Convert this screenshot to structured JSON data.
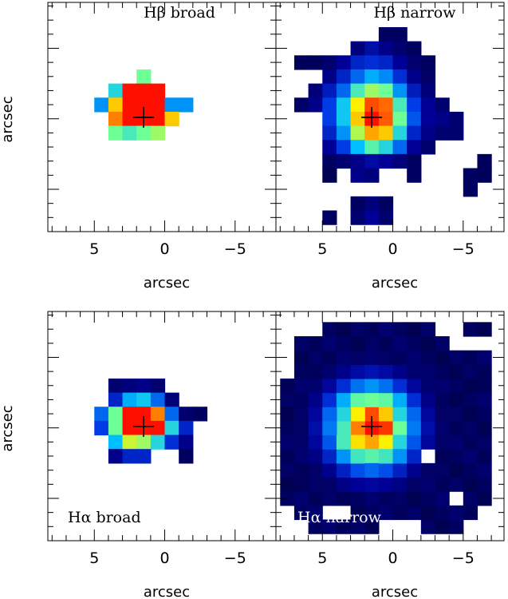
{
  "figure": {
    "x_axis_label": "arcsec",
    "y_axis_label": "arcsec",
    "x_ticks": [
      "5",
      "0",
      "−5"
    ],
    "title_color_dark": "#000000",
    "title_color_light": "#ffffff",
    "cross_color": "#000000"
  },
  "chart_data": [
    {
      "type": "heatmap",
      "title": "Hβ broad",
      "xlabel": "arcsec",
      "ylabel": "arcsec",
      "xlim": [
        8.3,
        -7.9
      ],
      "x_ticks": [
        5,
        0,
        -5
      ],
      "centroid": [
        1.5,
        0.1
      ],
      "pixel_size_arcsec": 1.0,
      "cells": [
        [
          1.5,
          3,
          0.55
        ],
        [
          3.5,
          2,
          0.45
        ],
        [
          2.5,
          2,
          1.0
        ],
        [
          1.5,
          2,
          1.0
        ],
        [
          0.5,
          2,
          1.0
        ],
        [
          4.5,
          1,
          0.35
        ],
        [
          3.5,
          1,
          0.75
        ],
        [
          2.5,
          1,
          1.0
        ],
        [
          1.5,
          1,
          1.0
        ],
        [
          0.5,
          1,
          1.0
        ],
        [
          -0.5,
          1,
          0.35
        ],
        [
          -1.5,
          1,
          0.35
        ],
        [
          3.5,
          0,
          0.85
        ],
        [
          2.5,
          0,
          1.0
        ],
        [
          1.5,
          0,
          1.0
        ],
        [
          0.5,
          0,
          1.0
        ],
        [
          -0.5,
          0,
          0.75
        ],
        [
          3.5,
          -1,
          0.55
        ],
        [
          2.5,
          -1,
          0.5
        ],
        [
          1.5,
          -1,
          0.55
        ],
        [
          0.5,
          -1,
          0.6
        ]
      ]
    },
    {
      "type": "heatmap",
      "title": "Hβ narrow",
      "xlabel": "arcsec",
      "ylabel": "arcsec",
      "xlim": [
        8.3,
        -7.9
      ],
      "x_ticks": [
        5,
        0,
        -5
      ],
      "centroid": [
        1.5,
        0.1
      ],
      "pixel_size_arcsec": 1.0,
      "cells": [
        [
          0.5,
          6,
          0.04
        ],
        [
          -0.5,
          6,
          0.04
        ],
        [
          2.5,
          5,
          0.08
        ],
        [
          1.5,
          5,
          0.15
        ],
        [
          0.5,
          5,
          0.1
        ],
        [
          -0.5,
          5,
          0.06
        ],
        [
          -1.5,
          5,
          0.04
        ],
        [
          6.5,
          4,
          0.03
        ],
        [
          5.5,
          4,
          0.03
        ],
        [
          4.5,
          4,
          0.06
        ],
        [
          3.5,
          4,
          0.12
        ],
        [
          2.5,
          4,
          0.2
        ],
        [
          1.5,
          4,
          0.22
        ],
        [
          0.5,
          4,
          0.2
        ],
        [
          -0.5,
          4,
          0.12
        ],
        [
          -1.5,
          4,
          0.06
        ],
        [
          -2.5,
          4,
          0.04
        ],
        [
          4.5,
          3,
          0.1
        ],
        [
          3.5,
          3,
          0.2
        ],
        [
          2.5,
          3,
          0.3
        ],
        [
          1.5,
          3,
          0.38
        ],
        [
          0.5,
          3,
          0.34
        ],
        [
          -0.5,
          3,
          0.22
        ],
        [
          -1.5,
          3,
          0.1
        ],
        [
          -2.5,
          3,
          0.05
        ],
        [
          5.5,
          2,
          0.08
        ],
        [
          4.5,
          2,
          0.18
        ],
        [
          3.5,
          2,
          0.3
        ],
        [
          2.5,
          2,
          0.5
        ],
        [
          1.5,
          2,
          0.6
        ],
        [
          0.5,
          2,
          0.55
        ],
        [
          -0.5,
          2,
          0.35
        ],
        [
          -1.5,
          2,
          0.18
        ],
        [
          -2.5,
          2,
          0.08
        ],
        [
          6.5,
          1,
          0.05
        ],
        [
          5.5,
          1,
          0.1
        ],
        [
          4.5,
          1,
          0.25
        ],
        [
          3.5,
          1,
          0.42
        ],
        [
          2.5,
          1,
          0.7
        ],
        [
          1.5,
          1,
          0.92
        ],
        [
          0.5,
          1,
          0.88
        ],
        [
          -0.5,
          1,
          0.5
        ],
        [
          -1.5,
          1,
          0.25
        ],
        [
          -2.5,
          1,
          0.12
        ],
        [
          -3.5,
          1,
          0.06
        ],
        [
          4.5,
          0,
          0.25
        ],
        [
          3.5,
          0,
          0.42
        ],
        [
          2.5,
          0,
          0.75
        ],
        [
          1.5,
          0,
          1.0
        ],
        [
          0.5,
          0,
          0.9
        ],
        [
          -0.5,
          0,
          0.55
        ],
        [
          -1.5,
          0,
          0.28
        ],
        [
          -2.5,
          0,
          0.12
        ],
        [
          -3.5,
          0,
          0.1
        ],
        [
          -4.5,
          0,
          0.06
        ],
        [
          4.5,
          -1,
          0.2
        ],
        [
          3.5,
          -1,
          0.35
        ],
        [
          2.5,
          -1,
          0.62
        ],
        [
          1.5,
          -1,
          0.8
        ],
        [
          0.5,
          -1,
          0.75
        ],
        [
          -0.5,
          -1,
          0.45
        ],
        [
          -1.5,
          -1,
          0.2
        ],
        [
          -2.5,
          -1,
          0.1
        ],
        [
          -3.5,
          -1,
          0.06
        ],
        [
          -4.5,
          -1,
          0.06
        ],
        [
          4.5,
          -2,
          0.12
        ],
        [
          3.5,
          -2,
          0.25
        ],
        [
          2.5,
          -2,
          0.4
        ],
        [
          1.5,
          -2,
          0.52
        ],
        [
          0.5,
          -2,
          0.45
        ],
        [
          -0.5,
          -2,
          0.3
        ],
        [
          -1.5,
          -2,
          0.12
        ],
        [
          -2.5,
          -2,
          0.06
        ],
        [
          4.5,
          -3,
          0.04
        ],
        [
          3.5,
          -3,
          0.06
        ],
        [
          2.5,
          -3,
          0.1
        ],
        [
          1.5,
          -3,
          0.14
        ],
        [
          0.5,
          -3,
          0.12
        ],
        [
          -0.5,
          -3,
          0.08
        ],
        [
          -1.5,
          -3,
          0.04
        ],
        [
          -6.5,
          -3,
          0.03
        ],
        [
          4.5,
          -4,
          0.02
        ],
        [
          2.5,
          -4,
          0.1
        ],
        [
          1.5,
          -4,
          0.08
        ],
        [
          -1.5,
          -4,
          0.04
        ],
        [
          -5.5,
          -4,
          0.04
        ],
        [
          -6.5,
          -4,
          0.03
        ],
        [
          -5.5,
          -5,
          0.04
        ],
        [
          2.5,
          -6,
          0.04
        ],
        [
          1.5,
          -6,
          0.08
        ],
        [
          0.5,
          -6,
          0.04
        ],
        [
          4.5,
          -7,
          0.04
        ],
        [
          2.5,
          -7,
          0.06
        ],
        [
          1.5,
          -7,
          0.12
        ],
        [
          0.5,
          -7,
          0.06
        ]
      ]
    },
    {
      "type": "heatmap",
      "title": "Hα broad",
      "xlabel": "arcsec",
      "ylabel": "arcsec",
      "xlim": [
        8.3,
        -7.9
      ],
      "x_ticks": [
        5,
        0,
        -5
      ],
      "centroid": [
        1.5,
        0.1
      ],
      "pixel_size_arcsec": 1.0,
      "cells": [
        [
          3.5,
          3,
          0.06
        ],
        [
          2.5,
          3,
          0.08
        ],
        [
          1.5,
          3,
          0.1
        ],
        [
          0.5,
          3,
          0.06
        ],
        [
          3.5,
          2,
          0.2
        ],
        [
          2.5,
          2,
          0.38
        ],
        [
          1.5,
          2,
          0.42
        ],
        [
          0.5,
          2,
          0.3
        ],
        [
          -0.5,
          2,
          0.08
        ],
        [
          4.5,
          1,
          0.3
        ],
        [
          3.5,
          1,
          0.55
        ],
        [
          2.5,
          1,
          1.0
        ],
        [
          1.5,
          1,
          1.0
        ],
        [
          0.5,
          1,
          0.85
        ],
        [
          -0.5,
          1,
          0.3
        ],
        [
          -1.5,
          1,
          0.06
        ],
        [
          -2.5,
          1,
          0.04
        ],
        [
          4.5,
          0,
          0.25
        ],
        [
          3.5,
          0,
          0.55
        ],
        [
          2.5,
          0,
          1.0
        ],
        [
          1.5,
          0,
          1.0
        ],
        [
          0.5,
          0,
          1.0
        ],
        [
          -0.5,
          0,
          0.45
        ],
        [
          -1.5,
          0,
          0.2
        ],
        [
          3.5,
          -1,
          0.4
        ],
        [
          2.5,
          -1,
          0.65
        ],
        [
          1.5,
          -1,
          0.6
        ],
        [
          0.5,
          -1,
          0.45
        ],
        [
          -0.5,
          -1,
          0.22
        ],
        [
          -1.5,
          -1,
          0.1
        ],
        [
          3.5,
          -2,
          0.1
        ],
        [
          2.5,
          -2,
          0.2
        ],
        [
          1.5,
          -2,
          0.2
        ],
        [
          -1.5,
          -2,
          0.04
        ]
      ]
    },
    {
      "type": "heatmap",
      "title": "Hα narrow",
      "xlabel": "arcsec",
      "ylabel": "arcsec",
      "xlim": [
        8.3,
        -7.9
      ],
      "x_ticks": [
        5,
        0,
        -5
      ],
      "centroid": [
        1.5,
        0.1
      ],
      "pixel_size_arcsec": 1.0,
      "cells": [
        [
          1.5,
          0,
          1.0
        ],
        [
          0.5,
          0,
          0.95
        ],
        [
          2.5,
          0,
          0.85
        ],
        [
          1.5,
          1,
          0.92
        ],
        [
          0.5,
          1,
          0.75
        ],
        [
          2.5,
          1,
          0.7
        ],
        [
          1.5,
          -1,
          0.8
        ],
        [
          0.5,
          -1,
          0.7
        ],
        [
          2.5,
          -1,
          0.72
        ],
        [
          -0.5,
          0,
          0.55
        ],
        [
          3.5,
          0,
          0.5
        ],
        [
          1.5,
          2,
          0.55
        ],
        [
          1.5,
          -2,
          0.52
        ],
        [
          -0.5,
          -1,
          0.45
        ],
        [
          3.5,
          1,
          0.45
        ],
        [
          -0.5,
          1,
          0.45
        ]
      ]
    }
  ]
}
